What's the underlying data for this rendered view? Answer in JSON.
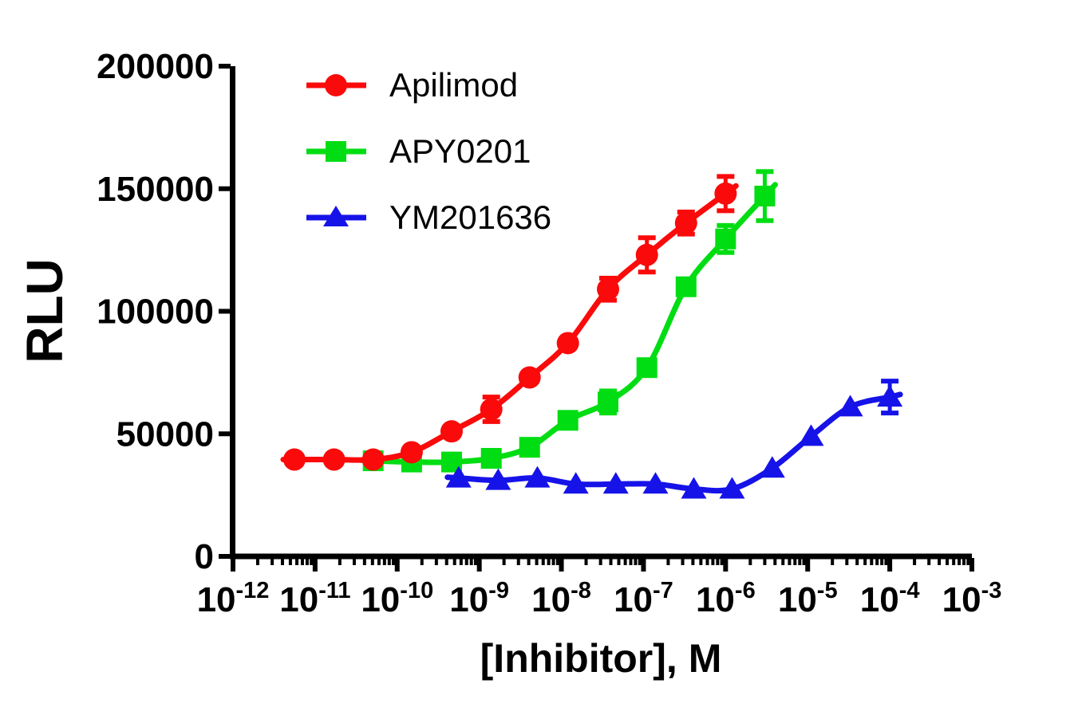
{
  "chart_data": {
    "type": "line",
    "title": "",
    "xlabel": "[Inhibitor], M",
    "ylabel": "RLU",
    "x_scale": "log10",
    "x_unit": "M",
    "x_tick_base": "10",
    "x_tick_exponents": [
      -12,
      -11,
      -10,
      -9,
      -8,
      -7,
      -6,
      -5,
      -4,
      -3
    ],
    "y_ticks": [
      0,
      50000,
      100000,
      150000,
      200000
    ],
    "y_tick_labels": [
      "0",
      "50000",
      "100000",
      "150000",
      "200000"
    ],
    "ylim": [
      0,
      200000
    ],
    "grid": false,
    "legend_position": "top-left-inside",
    "axis_color": "#000000",
    "background_color": "#FFFFFF",
    "series": [
      {
        "name": "Apilimod",
        "color": "#FA0A0A",
        "marker": "circle",
        "x": [
          5.6e-12,
          1.7e-11,
          5.1e-11,
          1.5e-10,
          4.6e-10,
          1.4e-09,
          4.1e-09,
          1.2e-08,
          3.7e-08,
          1.1e-07,
          3.3e-07,
          1e-06
        ],
        "y": [
          39500,
          39500,
          39500,
          42500,
          51000,
          60000,
          73000,
          87000,
          109000,
          123000,
          136000,
          148000
        ],
        "y_err": [
          0,
          0,
          0,
          0,
          0,
          5000,
          0,
          0,
          4500,
          7000,
          4500,
          7000
        ]
      },
      {
        "name": "APY0201",
        "color": "#00DD12",
        "marker": "square",
        "x": [
          5.1e-11,
          1.5e-10,
          4.6e-10,
          1.4e-09,
          4.1e-09,
          1.2e-08,
          3.7e-08,
          1.1e-07,
          3.3e-07,
          1e-06,
          3e-06
        ],
        "y": [
          39000,
          38500,
          38500,
          40000,
          44500,
          55500,
          63000,
          77000,
          110000,
          129500,
          147000
        ],
        "y_err": [
          0,
          0,
          0,
          0,
          0,
          0,
          4500,
          0,
          0,
          5500,
          10000
        ]
      },
      {
        "name": "YM201636",
        "color": "#1613E8",
        "marker": "triangle",
        "x": [
          5.6e-10,
          1.7e-09,
          5.1e-09,
          1.5e-08,
          4.6e-08,
          1.4e-07,
          4.1e-07,
          1.2e-06,
          3.7e-06,
          1.1e-05,
          3.3e-05,
          0.0001
        ],
        "y": [
          32000,
          31000,
          32000,
          29500,
          29500,
          29500,
          27500,
          27500,
          36000,
          49000,
          61000,
          65000
        ],
        "y_err": [
          0,
          0,
          0,
          0,
          0,
          0,
          0,
          0,
          0,
          0,
          0,
          6500
        ]
      }
    ]
  }
}
